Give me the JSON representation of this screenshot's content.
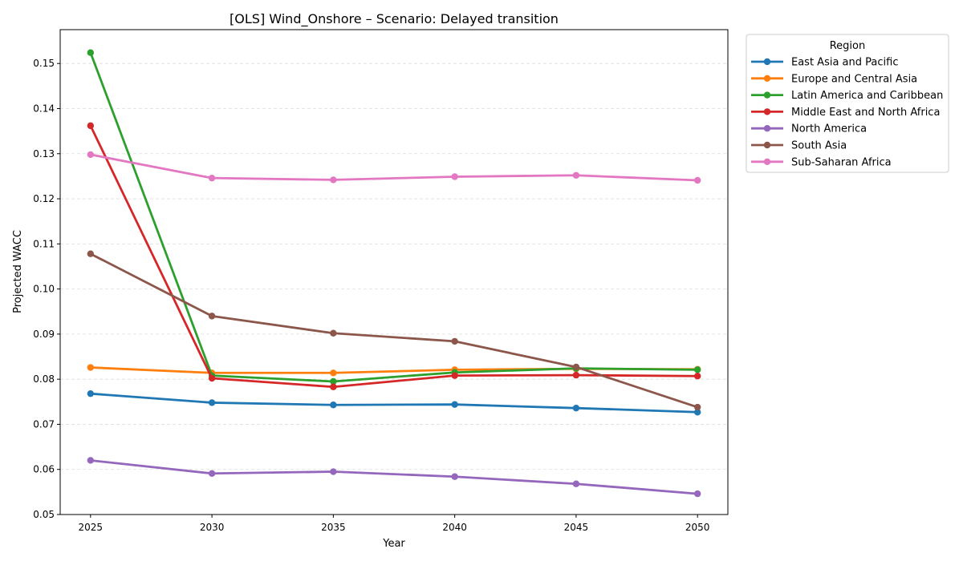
{
  "chart_data": {
    "type": "line",
    "title": "[OLS] Wind_Onshore – Scenario: Delayed transition",
    "xlabel": "Year",
    "ylabel": "Projected WACC",
    "x": [
      2025,
      2030,
      2035,
      2040,
      2045,
      2050
    ],
    "x_tick_labels": [
      "2025",
      "2030",
      "2035",
      "2040",
      "2045",
      "2050"
    ],
    "xlim": [
      2023.75,
      2051.25
    ],
    "ylim": [
      0.05,
      0.1575
    ],
    "y_ticks": [
      0.05,
      0.06,
      0.07,
      0.08,
      0.09,
      0.1,
      0.11,
      0.12,
      0.13,
      0.14,
      0.15
    ],
    "y_tick_labels": [
      "0.05",
      "0.06",
      "0.07",
      "0.08",
      "0.09",
      "0.10",
      "0.11",
      "0.12",
      "0.13",
      "0.14",
      "0.15"
    ],
    "grid": "y-dashed",
    "legend": {
      "title": "Region",
      "placement": "outside-top-right"
    },
    "series": [
      {
        "name": "East Asia and Pacific",
        "color": "#1f77b4",
        "values": [
          0.0768,
          0.0748,
          0.0743,
          0.0744,
          0.0736,
          0.0727
        ]
      },
      {
        "name": "Europe and Central Asia",
        "color": "#ff7f0e",
        "values": [
          0.0826,
          0.0814,
          0.0814,
          0.0821,
          0.0823,
          0.0822
        ]
      },
      {
        "name": "Latin America and Caribbean",
        "color": "#2ca02c",
        "values": [
          0.1524,
          0.0808,
          0.0795,
          0.0815,
          0.0824,
          0.0821
        ]
      },
      {
        "name": "Middle East and North Africa",
        "color": "#d62728",
        "values": [
          0.1362,
          0.0802,
          0.0783,
          0.0808,
          0.0809,
          0.0807
        ]
      },
      {
        "name": "North America",
        "color": "#9467bd",
        "values": [
          0.062,
          0.0591,
          0.0595,
          0.0584,
          0.0568,
          0.0546
        ]
      },
      {
        "name": "South Asia",
        "color": "#8c564b",
        "values": [
          0.1078,
          0.094,
          0.0902,
          0.0884,
          0.0827,
          0.0738
        ]
      },
      {
        "name": "Sub-Saharan Africa",
        "color": "#e377c2",
        "values": [
          0.1298,
          0.1246,
          0.1242,
          0.1249,
          0.1252,
          0.1241
        ]
      }
    ]
  }
}
